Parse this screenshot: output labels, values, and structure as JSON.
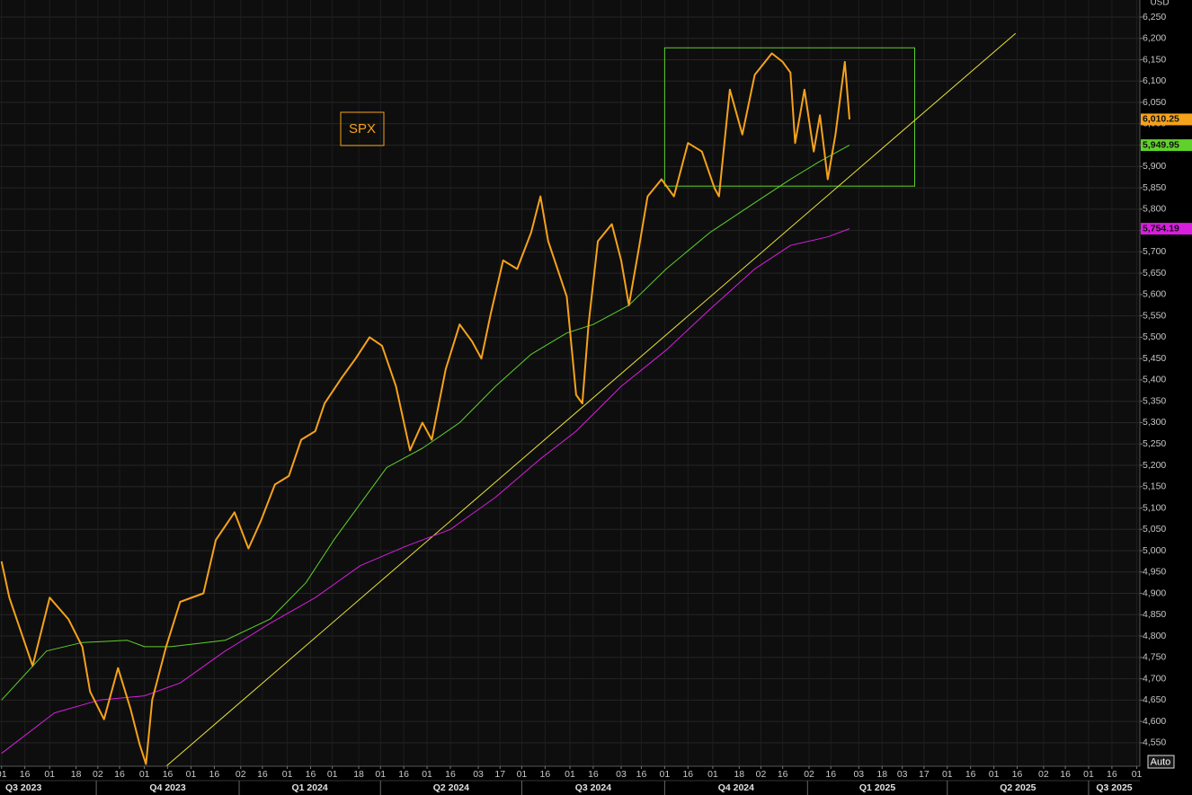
{
  "chart_data": {
    "type": "line",
    "title": "SPX",
    "y_axis_label": "USD",
    "button": "Auto",
    "grid": true,
    "xlim": [
      "2023-07-31",
      "2025-08-03"
    ],
    "ylim": [
      4495,
      6290
    ],
    "yticks": [
      {
        "value": 4550,
        "label": "4,550"
      },
      {
        "value": 4600,
        "label": "4,600"
      },
      {
        "value": 4650,
        "label": "4,650"
      },
      {
        "value": 4700,
        "label": "4,700"
      },
      {
        "value": 4750,
        "label": "4,750"
      },
      {
        "value": 4800,
        "label": "4,800"
      },
      {
        "value": 4850,
        "label": "4,850"
      },
      {
        "value": 4900,
        "label": "4,900"
      },
      {
        "value": 4950,
        "label": "4,950"
      },
      {
        "value": 5000,
        "label": "5,000"
      },
      {
        "value": 5050,
        "label": "5,050"
      },
      {
        "value": 5100,
        "label": "5,100"
      },
      {
        "value": 5150,
        "label": "5,150"
      },
      {
        "value": 5200,
        "label": "5,200"
      },
      {
        "value": 5250,
        "label": "5,250"
      },
      {
        "value": 5300,
        "label": "5,300"
      },
      {
        "value": 5350,
        "label": "5,350"
      },
      {
        "value": 5400,
        "label": "5,400"
      },
      {
        "value": 5450,
        "label": "5,450"
      },
      {
        "value": 5500,
        "label": "5,500"
      },
      {
        "value": 5550,
        "label": "5,550"
      },
      {
        "value": 5600,
        "label": "5,600"
      },
      {
        "value": 5650,
        "label": "5,650"
      },
      {
        "value": 5700,
        "label": "5,700"
      },
      {
        "value": 5750,
        "label": "5,750"
      },
      {
        "value": 5800,
        "label": "5,800"
      },
      {
        "value": 5850,
        "label": "5,850"
      },
      {
        "value": 5900,
        "label": "5,900"
      },
      {
        "value": 5950,
        "label": "5,950"
      },
      {
        "value": 6000,
        "label": "6,000"
      },
      {
        "value": 6050,
        "label": "6,050"
      },
      {
        "value": 6100,
        "label": "6,100"
      },
      {
        "value": 6150,
        "label": "6,150"
      },
      {
        "value": 6200,
        "label": "6,200"
      },
      {
        "value": 6250,
        "label": "6,250"
      }
    ],
    "xticks": [
      {
        "value": "2023-08-01",
        "label": "01"
      },
      {
        "value": "2023-08-16",
        "label": "16"
      },
      {
        "value": "2023-09-01",
        "label": "01"
      },
      {
        "value": "2023-09-18",
        "label": "18"
      },
      {
        "value": "2023-10-02",
        "label": "02"
      },
      {
        "value": "2023-10-16",
        "label": "16"
      },
      {
        "value": "2023-11-01",
        "label": "01"
      },
      {
        "value": "2023-11-16",
        "label": "16"
      },
      {
        "value": "2023-12-01",
        "label": "01"
      },
      {
        "value": "2023-12-16",
        "label": "16"
      },
      {
        "value": "2024-01-02",
        "label": "02"
      },
      {
        "value": "2024-01-16",
        "label": "16"
      },
      {
        "value": "2024-02-01",
        "label": "01"
      },
      {
        "value": "2024-02-16",
        "label": "16"
      },
      {
        "value": "2024-03-01",
        "label": "01"
      },
      {
        "value": "2024-03-18",
        "label": "18"
      },
      {
        "value": "2024-04-01",
        "label": "01"
      },
      {
        "value": "2024-04-16",
        "label": "16"
      },
      {
        "value": "2024-05-01",
        "label": "01"
      },
      {
        "value": "2024-05-16",
        "label": "16"
      },
      {
        "value": "2024-06-03",
        "label": "03"
      },
      {
        "value": "2024-06-17",
        "label": "17"
      },
      {
        "value": "2024-07-01",
        "label": "01"
      },
      {
        "value": "2024-07-16",
        "label": "16"
      },
      {
        "value": "2024-08-01",
        "label": "01"
      },
      {
        "value": "2024-08-16",
        "label": "16"
      },
      {
        "value": "2024-09-03",
        "label": "03"
      },
      {
        "value": "2024-09-16",
        "label": "16"
      },
      {
        "value": "2024-10-01",
        "label": "01"
      },
      {
        "value": "2024-10-16",
        "label": "16"
      },
      {
        "value": "2024-11-01",
        "label": "01"
      },
      {
        "value": "2024-11-18",
        "label": "18"
      },
      {
        "value": "2024-12-02",
        "label": "02"
      },
      {
        "value": "2024-12-16",
        "label": "16"
      },
      {
        "value": "2025-01-02",
        "label": "02"
      },
      {
        "value": "2025-01-16",
        "label": "16"
      },
      {
        "value": "2025-02-03",
        "label": "03"
      },
      {
        "value": "2025-02-18",
        "label": "18"
      },
      {
        "value": "2025-03-03",
        "label": "03"
      },
      {
        "value": "2025-03-17",
        "label": "17"
      },
      {
        "value": "2025-04-01",
        "label": "01"
      },
      {
        "value": "2025-04-16",
        "label": "16"
      },
      {
        "value": "2025-05-01",
        "label": "01"
      },
      {
        "value": "2025-05-16",
        "label": "16"
      },
      {
        "value": "2025-06-02",
        "label": "02"
      },
      {
        "value": "2025-06-16",
        "label": "16"
      },
      {
        "value": "2025-07-01",
        "label": "01"
      },
      {
        "value": "2025-07-16",
        "label": "16"
      },
      {
        "value": "2025-08-01",
        "label": "01"
      }
    ],
    "quarter_ticks": [
      {
        "value": "2023-07-01",
        "label": "Q3 2023"
      },
      {
        "value": "2023-10-01",
        "label": "Q4 2023"
      },
      {
        "value": "2024-01-01",
        "label": "Q1 2024"
      },
      {
        "value": "2024-04-01",
        "label": "Q2 2024"
      },
      {
        "value": "2024-07-01",
        "label": "Q3 2024"
      },
      {
        "value": "2024-10-01",
        "label": "Q4 2024"
      },
      {
        "value": "2025-01-01",
        "label": "Q1 2025"
      },
      {
        "value": "2025-04-01",
        "label": "Q2 2025"
      },
      {
        "value": "2025-07-01",
        "label": "Q3 2025"
      }
    ],
    "series": [
      {
        "color": "#f5a21b",
        "width": 2,
        "x": [
          "2023-08-01",
          "2023-08-06",
          "2023-08-21",
          "2023-09-01",
          "2023-09-13",
          "2023-09-22",
          "2023-09-27",
          "2023-10-06",
          "2023-10-15",
          "2023-10-23",
          "2023-10-29",
          "2023-11-02",
          "2023-11-06",
          "2023-11-15",
          "2023-11-24",
          "2023-12-09",
          "2023-12-17",
          "2023-12-29",
          "2024-01-07",
          "2024-01-15",
          "2024-01-24",
          "2024-02-02",
          "2024-02-10",
          "2024-02-19",
          "2024-02-25",
          "2024-03-07",
          "2024-03-16",
          "2024-03-25",
          "2024-04-02",
          "2024-04-11",
          "2024-04-20",
          "2024-04-28",
          "2024-05-04",
          "2024-05-13",
          "2024-05-22",
          "2024-05-30",
          "2024-06-05",
          "2024-06-11",
          "2024-06-19",
          "2024-06-28",
          "2024-07-07",
          "2024-07-13",
          "2024-07-18",
          "2024-07-24",
          "2024-07-30",
          "2024-08-05",
          "2024-08-09",
          "2024-08-13",
          "2024-08-19",
          "2024-08-28",
          "2024-09-03",
          "2024-09-08",
          "2024-09-14",
          "2024-09-20",
          "2024-09-29",
          "2024-10-07",
          "2024-10-16",
          "2024-10-25",
          "2024-11-02",
          "2024-11-05",
          "2024-11-12",
          "2024-11-20",
          "2024-11-28",
          "2024-12-09",
          "2024-12-16",
          "2024-12-21",
          "2024-12-24",
          "2024-12-30",
          "2025-01-05",
          "2025-01-09",
          "2025-01-14",
          "2025-01-19",
          "2025-01-25",
          "2025-01-28"
        ],
        "values": [
          4975,
          4890,
          4730,
          4890,
          4840,
          4775,
          4670,
          4605,
          4725,
          4630,
          4545,
          4500,
          4650,
          4775,
          4880,
          4900,
          5025,
          5090,
          5005,
          5070,
          5155,
          5175,
          5260,
          5280,
          5345,
          5405,
          5450,
          5500,
          5480,
          5385,
          5235,
          5300,
          5260,
          5425,
          5530,
          5490,
          5450,
          5555,
          5680,
          5660,
          5745,
          5830,
          5725,
          5660,
          5595,
          5365,
          5345,
          5530,
          5725,
          5765,
          5680,
          5575,
          5700,
          5830,
          5870,
          5830,
          5955,
          5935,
          5850,
          5830,
          6080,
          5975,
          6115,
          6165,
          6145,
          6120,
          5955,
          6080,
          5935,
          6020,
          5870,
          5975,
          6145,
          6010.25
        ],
        "last_label": {
          "value": 6010.25,
          "label": "6,010.25"
        }
      },
      {
        "color": "#5fd12a",
        "width": 1,
        "x": [
          "2023-08-01",
          "2023-08-30",
          "2023-09-22",
          "2023-10-21",
          "2023-11-01",
          "2023-11-18",
          "2023-12-23",
          "2024-01-21",
          "2024-02-13",
          "2024-03-02",
          "2024-03-19",
          "2024-04-05",
          "2024-04-28",
          "2024-05-22",
          "2024-06-14",
          "2024-07-07",
          "2024-07-30",
          "2024-08-16",
          "2024-09-08",
          "2024-10-02",
          "2024-10-30",
          "2024-11-28",
          "2024-12-21",
          "2025-01-08",
          "2025-01-28"
        ],
        "values": [
          4650,
          4765,
          4785,
          4790,
          4775,
          4775,
          4790,
          4840,
          4925,
          5025,
          5110,
          5195,
          5240,
          5300,
          5385,
          5460,
          5510,
          5530,
          5575,
          5660,
          5745,
          5815,
          5870,
          5910,
          5949.95
        ],
        "last_label": {
          "value": 5949.95,
          "label": "5,949.95"
        }
      },
      {
        "color": "#d91ee0",
        "width": 1,
        "x": [
          "2023-08-01",
          "2023-09-04",
          "2023-10-03",
          "2023-11-01",
          "2023-11-24",
          "2023-12-23",
          "2024-01-21",
          "2024-02-19",
          "2024-03-19",
          "2024-04-17",
          "2024-05-16",
          "2024-06-14",
          "2024-07-13",
          "2024-08-05",
          "2024-09-03",
          "2024-10-02",
          "2024-10-30",
          "2024-11-28",
          "2024-12-21",
          "2025-01-14",
          "2025-01-28"
        ],
        "values": [
          4525,
          4620,
          4650,
          4660,
          4690,
          4765,
          4830,
          4890,
          4965,
          5010,
          5050,
          5125,
          5215,
          5280,
          5385,
          5470,
          5565,
          5660,
          5715,
          5735,
          5754.19
        ],
        "last_label": {
          "value": 5754.19,
          "label": "5,754.19"
        }
      }
    ],
    "trend_line": {
      "color": "#e8e23a",
      "x": [
        "2023-11-15",
        "2025-05-15"
      ],
      "values": [
        4495,
        6212
      ]
    },
    "range_box": {
      "color": "#5fd12a",
      "x": [
        "2024-10-01",
        "2025-03-11"
      ],
      "values": [
        6178,
        5854
      ]
    }
  }
}
